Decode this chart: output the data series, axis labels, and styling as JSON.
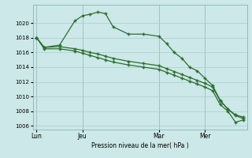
{
  "background_color": "#cce8e8",
  "grid_color": "#aacccc",
  "line_color": "#2d6e2d",
  "marker_color": "#2d6e2d",
  "xlabel": "Pression niveau de la mer( hPa )",
  "ylim": [
    1005.5,
    1022.5
  ],
  "yticks": [
    1006,
    1008,
    1010,
    1012,
    1014,
    1016,
    1018,
    1020
  ],
  "xtick_labels": [
    "Lun",
    "Jeu",
    "Mar",
    "Mer"
  ],
  "xtick_positions": [
    0,
    6,
    16,
    22
  ],
  "total_points": 28,
  "series1_x": [
    0,
    1,
    3,
    5,
    6,
    7,
    8,
    9,
    10,
    12,
    14,
    16,
    17,
    18,
    19,
    20,
    21,
    22,
    23,
    24,
    25,
    26,
    27
  ],
  "series1_y": [
    1018.0,
    1016.7,
    1017.0,
    1020.3,
    1021.0,
    1021.2,
    1021.5,
    1021.3,
    1019.5,
    1018.5,
    1018.5,
    1018.2,
    1017.2,
    1016.0,
    1015.2,
    1014.0,
    1013.5,
    1012.5,
    1011.5,
    1009.5,
    1008.3,
    1007.5,
    1007.2
  ],
  "series2_x": [
    0,
    1,
    3,
    5,
    6,
    7,
    8,
    9,
    10,
    12,
    14,
    16,
    17,
    18,
    19,
    20,
    21,
    22,
    23,
    24,
    25,
    26,
    27
  ],
  "series2_y": [
    1018.0,
    1016.7,
    1016.8,
    1016.5,
    1016.3,
    1016.0,
    1015.8,
    1015.5,
    1015.2,
    1014.8,
    1014.5,
    1014.2,
    1013.8,
    1013.4,
    1013.0,
    1012.6,
    1012.2,
    1011.8,
    1011.3,
    1009.4,
    1008.3,
    1007.4,
    1007.0
  ],
  "series3_x": [
    0,
    1,
    3,
    5,
    6,
    7,
    8,
    9,
    10,
    12,
    14,
    16,
    17,
    18,
    19,
    20,
    21,
    22,
    23,
    24,
    25,
    26,
    27
  ],
  "series3_y": [
    1018.0,
    1016.5,
    1016.5,
    1016.2,
    1015.9,
    1015.6,
    1015.3,
    1015.0,
    1014.7,
    1014.3,
    1014.0,
    1013.7,
    1013.3,
    1012.9,
    1012.5,
    1012.1,
    1011.7,
    1011.3,
    1010.8,
    1008.9,
    1008.0,
    1006.5,
    1006.8
  ]
}
